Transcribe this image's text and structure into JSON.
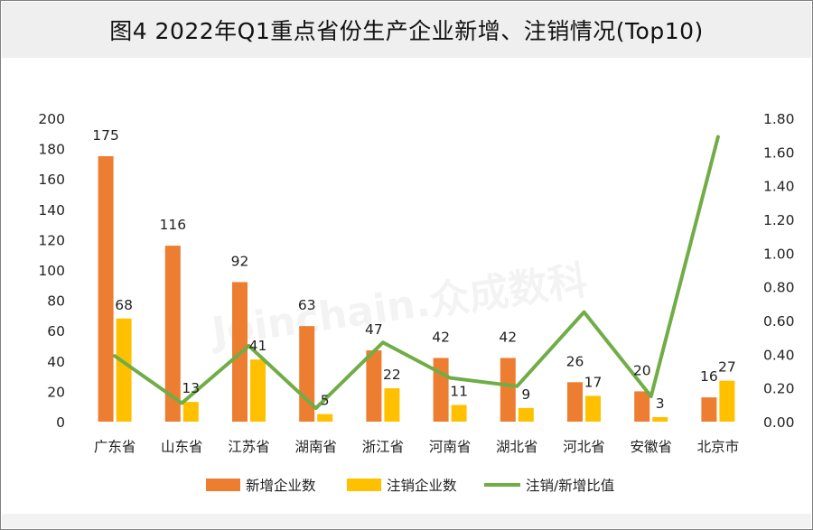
{
  "title": "图4  2022年Q1重点省份生产企业新增、注销情况(Top10)",
  "watermark": "Joinchain.众成数科",
  "chart_data": {
    "type": "bar",
    "categories": [
      "广东省",
      "山东省",
      "江苏省",
      "湖南省",
      "浙江省",
      "河南省",
      "湖北省",
      "河北省",
      "安徽省",
      "北京市"
    ],
    "series": [
      {
        "name": "新增企业数",
        "type": "bar",
        "axis": "left",
        "color": "#ED7D31",
        "values": [
          175,
          116,
          92,
          63,
          47,
          42,
          42,
          26,
          20,
          16
        ]
      },
      {
        "name": "注销企业数",
        "type": "bar",
        "axis": "left",
        "color": "#FFC000",
        "values": [
          68,
          13,
          41,
          5,
          22,
          11,
          9,
          17,
          3,
          27
        ]
      },
      {
        "name": "注销/新增比值",
        "type": "line",
        "axis": "right",
        "color": "#70AD47",
        "values": [
          0.39,
          0.11,
          0.45,
          0.08,
          0.47,
          0.26,
          0.21,
          0.65,
          0.15,
          1.69
        ]
      }
    ],
    "y_left": {
      "min": 0,
      "max": 200,
      "ticks": [
        "0",
        "20",
        "40",
        "60",
        "80",
        "100",
        "120",
        "140",
        "160",
        "180",
        "200"
      ]
    },
    "y_right": {
      "min": 0,
      "max": 1.8,
      "ticks": [
        "0.00",
        "0.20",
        "0.40",
        "0.60",
        "0.80",
        "1.00",
        "1.20",
        "1.40",
        "1.60",
        "1.80"
      ]
    },
    "legend_position": "bottom",
    "grid": false
  }
}
